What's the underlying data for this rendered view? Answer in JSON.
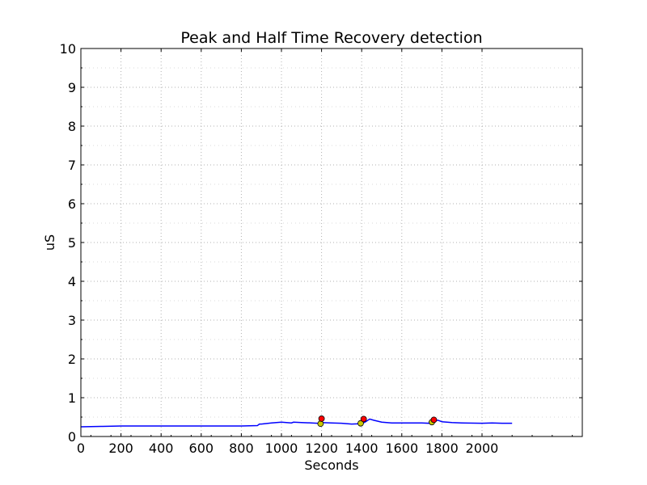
{
  "chart_data": {
    "type": "line",
    "title": "Peak and Half Time Recovery detection",
    "xlabel": "Seconds",
    "ylabel": "uS",
    "xlim": [
      0,
      2500
    ],
    "ylim": [
      0,
      10
    ],
    "x_ticks": [
      0,
      200,
      400,
      600,
      800,
      1000,
      1200,
      1400,
      1600,
      1800,
      2000
    ],
    "y_ticks": [
      0,
      1,
      2,
      3,
      4,
      5,
      6,
      7,
      8,
      9,
      10
    ],
    "x_tick_labels": [
      "0",
      "200",
      "400",
      "600",
      "800",
      "1000",
      "1200",
      "1400",
      "1600",
      "1800",
      "2000"
    ],
    "y_tick_labels": [
      "0",
      "1",
      "2",
      "3",
      "4",
      "5",
      "6",
      "7",
      "8",
      "9",
      "10"
    ],
    "grid": true,
    "series": [
      {
        "color": "#0000ff",
        "x": [
          0,
          100,
          200,
          300,
          400,
          500,
          600,
          700,
          800,
          880,
          890,
          900,
          950,
          1000,
          1050,
          1060,
          1100,
          1150,
          1180,
          1200,
          1250,
          1300,
          1350,
          1400,
          1420,
          1440,
          1460,
          1500,
          1550,
          1600,
          1650,
          1700,
          1740,
          1760,
          1780,
          1800,
          1850,
          1900,
          2000,
          2050,
          2100,
          2150
        ],
        "y": [
          0.25,
          0.26,
          0.27,
          0.27,
          0.27,
          0.27,
          0.27,
          0.27,
          0.27,
          0.28,
          0.32,
          0.32,
          0.35,
          0.37,
          0.35,
          0.37,
          0.36,
          0.35,
          0.34,
          0.36,
          0.35,
          0.34,
          0.32,
          0.33,
          0.38,
          0.45,
          0.42,
          0.37,
          0.35,
          0.35,
          0.35,
          0.35,
          0.34,
          0.4,
          0.42,
          0.38,
          0.36,
          0.35,
          0.34,
          0.35,
          0.34,
          0.34
        ]
      }
    ],
    "peak_points": {
      "color": "#ff0000",
      "x": [
        1200,
        1410,
        1760
      ],
      "y": [
        0.46,
        0.45,
        0.43
      ]
    },
    "half_recovery_points": {
      "color": "#c8c800",
      "x": [
        1195,
        1395,
        1750
      ],
      "y": [
        0.33,
        0.34,
        0.37
      ]
    },
    "colors": {
      "line": "#0000ff",
      "peak": "#ff0000",
      "half_recovery": "#c8c800",
      "grid": "#b0b0b0",
      "axes": "#000000"
    }
  }
}
